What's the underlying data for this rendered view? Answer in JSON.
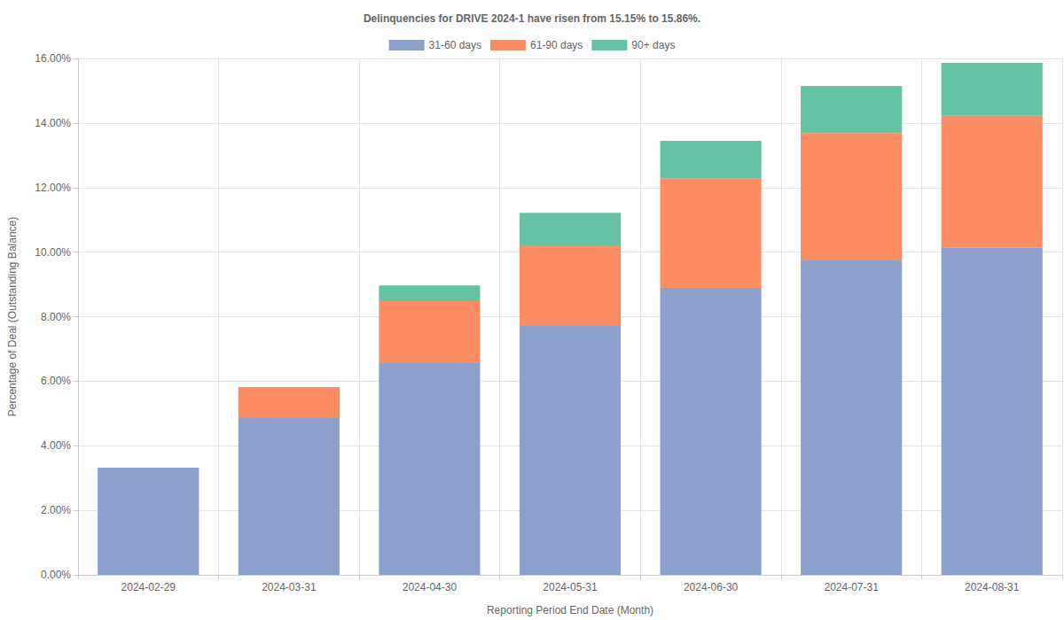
{
  "chart_data": {
    "type": "bar",
    "title": "Delinquencies for DRIVE 2024-1 have risen from 15.15% to 15.86%.",
    "x_label": "Reporting Period End Date (Month)",
    "y_label": "Percentage of Deal (Outstanding Balance)",
    "categories": [
      "2024-02-29",
      "2024-03-31",
      "2024-04-30",
      "2024-05-31",
      "2024-06-30",
      "2024-07-31",
      "2024-08-31"
    ],
    "series": [
      {
        "name": "31-60 days",
        "color": "#8da0cb",
        "values": [
          3.32,
          4.86,
          6.56,
          7.71,
          8.89,
          9.74,
          10.15
        ]
      },
      {
        "name": "61-90 days",
        "color": "#fc8d62",
        "values": [
          0,
          0.96,
          1.92,
          2.5,
          3.4,
          3.95,
          4.07
        ]
      },
      {
        "name": "90+ days",
        "color": "#66c2a5",
        "values": [
          0,
          0,
          0.49,
          1.01,
          1.16,
          1.46,
          1.64
        ]
      }
    ],
    "ylim": [
      0,
      16
    ],
    "yticks": [
      {
        "value": 0,
        "label": "0.00%"
      },
      {
        "value": 2,
        "label": "2.00%"
      },
      {
        "value": 4,
        "label": "4.00%"
      },
      {
        "value": 6,
        "label": "6.00%"
      },
      {
        "value": 8,
        "label": "8.00%"
      },
      {
        "value": 10,
        "label": "10.00%"
      },
      {
        "value": 12,
        "label": "12.00%"
      },
      {
        "value": 14,
        "label": "14.00%"
      },
      {
        "value": 16,
        "label": "16.00%"
      }
    ],
    "stacked": true,
    "grid": true,
    "legend": "top"
  }
}
